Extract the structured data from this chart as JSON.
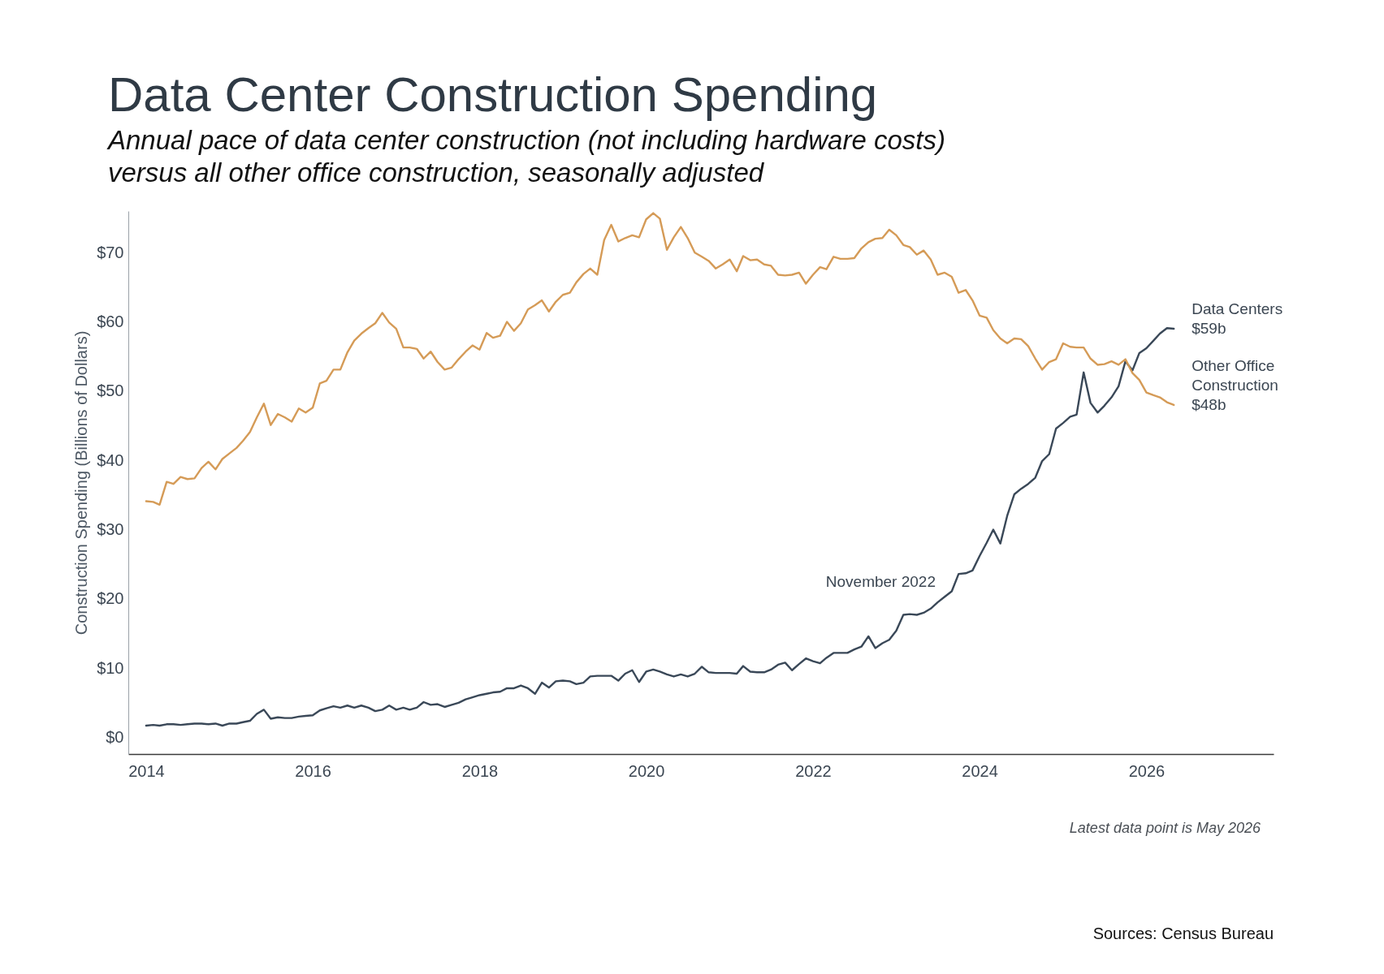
{
  "chart_data": {
    "type": "line",
    "title": "Data Center Construction Spending",
    "subtitle": "Annual pace of data center construction (not including hardware costs) versus all other office construction, seasonally adjusted",
    "ylabel": "Construction Spending (Billions of Dollars)",
    "x": [
      "2014-01",
      "2014-02",
      "2014-03",
      "2014-04",
      "2014-05",
      "2014-06",
      "2014-07",
      "2014-08",
      "2014-09",
      "2014-10",
      "2014-11",
      "2014-12",
      "2015-01",
      "2015-02",
      "2015-03",
      "2015-04",
      "2015-05",
      "2015-06",
      "2015-07",
      "2015-08",
      "2015-09",
      "2015-10",
      "2015-11",
      "2015-12",
      "2016-01",
      "2016-02",
      "2016-03",
      "2016-04",
      "2016-05",
      "2016-06",
      "2016-07",
      "2016-08",
      "2016-09",
      "2016-10",
      "2016-11",
      "2016-12",
      "2017-01",
      "2017-02",
      "2017-03",
      "2017-04",
      "2017-05",
      "2017-06",
      "2017-07",
      "2017-08",
      "2017-09",
      "2017-10",
      "2017-11",
      "2017-12",
      "2018-01",
      "2018-02",
      "2018-03",
      "2018-04",
      "2018-05",
      "2018-06",
      "2018-07",
      "2018-08",
      "2018-09",
      "2018-10",
      "2018-11",
      "2018-12",
      "2019-01",
      "2019-02",
      "2019-03",
      "2019-04",
      "2019-05",
      "2019-06",
      "2019-07",
      "2019-08",
      "2019-09",
      "2019-10",
      "2019-11",
      "2019-12",
      "2020-01",
      "2020-02",
      "2020-03",
      "2020-04",
      "2020-05",
      "2020-06",
      "2020-07",
      "2020-08",
      "2020-09",
      "2020-10",
      "2020-11",
      "2020-12",
      "2021-01",
      "2021-02",
      "2021-03",
      "2021-04",
      "2021-05",
      "2021-06",
      "2021-07",
      "2021-08",
      "2021-09",
      "2021-10",
      "2021-11",
      "2021-12",
      "2022-01",
      "2022-02",
      "2022-03",
      "2022-04",
      "2022-05",
      "2022-06",
      "2022-07",
      "2022-08",
      "2022-09",
      "2022-10",
      "2022-11",
      "2022-12",
      "2023-01",
      "2023-02",
      "2023-03",
      "2023-04",
      "2023-05",
      "2023-06",
      "2023-07",
      "2023-08",
      "2023-09",
      "2023-10",
      "2023-11",
      "2023-12",
      "2024-01",
      "2024-02",
      "2024-03",
      "2024-04",
      "2024-05",
      "2024-06",
      "2024-07",
      "2024-08",
      "2024-09",
      "2024-10",
      "2024-11",
      "2024-12",
      "2025-01",
      "2025-02",
      "2025-03",
      "2025-04",
      "2025-05",
      "2025-06",
      "2025-07",
      "2025-08",
      "2025-09",
      "2025-10",
      "2025-11",
      "2025-12",
      "2026-01",
      "2026-02",
      "2026-03",
      "2026-04",
      "2026-05"
    ],
    "series": [
      {
        "name": "Data Centers",
        "color": "#3a4858",
        "values": [
          1.7,
          1.8,
          1.7,
          1.9,
          1.9,
          1.8,
          1.9,
          2.0,
          2.0,
          1.9,
          2.0,
          1.7,
          2.0,
          2.0,
          2.2,
          2.4,
          3.4,
          4.0,
          2.7,
          2.9,
          2.8,
          2.8,
          3.0,
          3.1,
          3.2,
          3.9,
          4.2,
          4.5,
          4.3,
          4.6,
          4.3,
          4.6,
          4.3,
          3.8,
          4.0,
          4.6,
          4.0,
          4.3,
          4.0,
          4.3,
          5.1,
          4.7,
          4.8,
          4.4,
          4.7,
          5.0,
          5.5,
          5.8,
          6.1,
          6.3,
          6.5,
          6.6,
          7.1,
          7.1,
          7.5,
          7.1,
          6.3,
          7.9,
          7.2,
          8.1,
          8.2,
          8.1,
          7.7,
          7.9,
          8.8,
          8.9,
          8.9,
          8.9,
          8.2,
          9.2,
          9.7,
          8.0,
          9.5,
          9.8,
          9.5,
          9.1,
          8.8,
          9.1,
          8.8,
          9.2,
          10.2,
          9.4,
          9.3,
          9.3,
          9.3,
          9.2,
          10.3,
          9.5,
          9.4,
          9.4,
          9.8,
          10.5,
          10.8,
          9.7,
          10.6,
          11.4,
          11.0,
          10.7,
          11.5,
          12.2,
          12.2,
          12.2,
          12.7,
          13.1,
          14.6,
          12.9,
          13.6,
          14.1,
          15.4,
          17.7,
          17.8,
          17.7,
          18.0,
          18.6,
          19.5,
          20.3,
          21.1,
          23.6,
          23.7,
          24.1,
          26.2,
          28.1,
          30.0,
          28.0,
          32.0,
          35.1,
          35.9,
          36.6,
          37.5,
          39.9,
          40.9,
          44.6,
          45.4,
          46.3,
          46.6,
          52.7,
          48.3,
          46.9,
          47.9,
          49.1,
          50.7,
          54.3,
          53.0,
          55.5,
          56.2,
          57.3,
          58.3,
          59.1,
          59
        ],
        "value_labels": [
          null,
          null,
          null,
          null,
          null,
          null,
          null,
          null,
          null,
          null,
          null,
          null,
          null,
          null,
          null,
          null,
          null,
          null,
          null,
          null,
          null,
          null,
          null,
          null,
          null,
          null,
          null,
          null,
          null,
          null,
          null,
          null,
          null,
          null,
          null,
          null,
          null,
          null,
          null,
          null,
          null,
          null,
          null,
          null,
          null,
          null,
          null,
          null,
          null,
          null,
          null,
          null,
          null,
          null,
          null,
          null,
          null,
          null,
          null,
          null,
          null,
          null,
          null,
          null,
          null,
          null,
          null,
          null,
          null,
          null,
          null,
          null,
          null,
          null,
          null,
          null,
          null,
          null,
          null,
          null,
          null,
          null,
          null,
          null,
          null,
          null,
          null,
          null,
          null,
          null,
          null,
          null,
          null,
          null,
          null,
          null,
          null,
          null,
          null,
          null,
          null,
          null,
          null,
          null,
          null,
          null,
          null,
          null,
          null,
          null,
          null,
          null,
          null,
          null,
          null,
          null,
          null,
          null,
          null,
          null,
          null,
          null,
          null,
          null,
          null,
          null,
          null,
          null,
          null,
          null,
          null,
          null,
          null,
          null,
          null,
          null,
          null,
          null,
          null,
          null,
          null,
          null,
          null,
          null,
          null,
          null,
          null,
          null,
          "$59b"
        ]
      },
      {
        "name": "Other Office Construction",
        "color": "#d59b57",
        "values": [
          34.1,
          34.0,
          33.6,
          36.9,
          36.6,
          37.6,
          37.3,
          37.4,
          38.9,
          39.8,
          38.7,
          40.2,
          41.0,
          41.8,
          42.8,
          44.1,
          46.2,
          48.2,
          45.1,
          46.7,
          46.2,
          45.6,
          47.5,
          46.9,
          47.6,
          51.1,
          51.5,
          53.1,
          53.1,
          55.6,
          57.3,
          58.3,
          59.1,
          59.8,
          61.3,
          59.9,
          59.0,
          56.3,
          56.3,
          56.1,
          54.7,
          55.7,
          54.2,
          53.1,
          53.4,
          54.6,
          55.7,
          56.6,
          56.0,
          58.4,
          57.7,
          58.0,
          60.0,
          58.7,
          59.8,
          61.8,
          62.4,
          63.1,
          61.5,
          62.9,
          63.9,
          64.2,
          65.7,
          66.9,
          67.7,
          66.8,
          71.8,
          74.0,
          71.6,
          72.1,
          72.5,
          72.2,
          74.8,
          75.7,
          74.9,
          70.4,
          72.2,
          73.7,
          72.1,
          70.0,
          69.4,
          68.8,
          67.7,
          68.3,
          69.0,
          67.3,
          69.5,
          68.9,
          69.0,
          68.3,
          68.1,
          66.8,
          66.7,
          66.8,
          67.1,
          65.5,
          66.8,
          67.9,
          67.6,
          69.4,
          69.1,
          69.1,
          69.2,
          70.6,
          71.5,
          72.0,
          72.1,
          73.3,
          72.5,
          71.1,
          70.8,
          69.7,
          70.3,
          69.0,
          66.8,
          67.1,
          66.5,
          64.2,
          64.6,
          63.1,
          60.9,
          60.6,
          58.8,
          57.6,
          56.9,
          57.6,
          57.5,
          56.5,
          54.7,
          53.1,
          54.2,
          54.6,
          56.9,
          56.4,
          56.3,
          56.3,
          54.7,
          53.8,
          53.9,
          54.3,
          53.8,
          54.6,
          52.6,
          51.6,
          49.8,
          49.4,
          49.1,
          48.4,
          48
        ],
        "value_labels": [
          null,
          null,
          null,
          null,
          null,
          null,
          null,
          null,
          null,
          null,
          null,
          null,
          null,
          null,
          null,
          null,
          null,
          null,
          null,
          null,
          null,
          null,
          null,
          null,
          null,
          null,
          null,
          null,
          null,
          null,
          null,
          null,
          null,
          null,
          null,
          null,
          null,
          null,
          null,
          null,
          null,
          null,
          null,
          null,
          null,
          null,
          null,
          null,
          null,
          null,
          null,
          null,
          null,
          null,
          null,
          null,
          null,
          null,
          null,
          null,
          null,
          null,
          null,
          null,
          null,
          null,
          null,
          null,
          null,
          null,
          null,
          null,
          null,
          null,
          null,
          null,
          null,
          null,
          null,
          null,
          null,
          null,
          null,
          null,
          null,
          null,
          null,
          null,
          null,
          null,
          null,
          null,
          null,
          null,
          null,
          null,
          null,
          null,
          null,
          null,
          null,
          null,
          null,
          null,
          null,
          null,
          null,
          null,
          null,
          null,
          null,
          null,
          null,
          null,
          null,
          null,
          null,
          null,
          null,
          null,
          null,
          null,
          null,
          null,
          null,
          null,
          null,
          null,
          null,
          null,
          null,
          null,
          null,
          null,
          null,
          null,
          null,
          null,
          null,
          null,
          null,
          null,
          null,
          null,
          null,
          null,
          null,
          null,
          "$48b"
        ]
      }
    ],
    "xlim": [
      "2013-10-15",
      "2027-07-12"
    ],
    "xticks": [
      "2014",
      "2016",
      "2018",
      "2020",
      "2022",
      "2024",
      "2026"
    ],
    "ylim": [
      -2.4,
      76
    ],
    "yticks": [
      {
        "value": 0,
        "label": "$0"
      },
      {
        "value": 10,
        "label": "$10"
      },
      {
        "value": 20,
        "label": "$20"
      },
      {
        "value": 30,
        "label": "$30"
      },
      {
        "value": 40,
        "label": "$40"
      },
      {
        "value": 50,
        "label": "$50"
      },
      {
        "value": 60,
        "label": "$60"
      },
      {
        "value": 70,
        "label": "$70"
      }
    ],
    "annotations": [
      "November 2022",
      "Latest data point is May 2026",
      "Sources: Census Bureau"
    ]
  }
}
